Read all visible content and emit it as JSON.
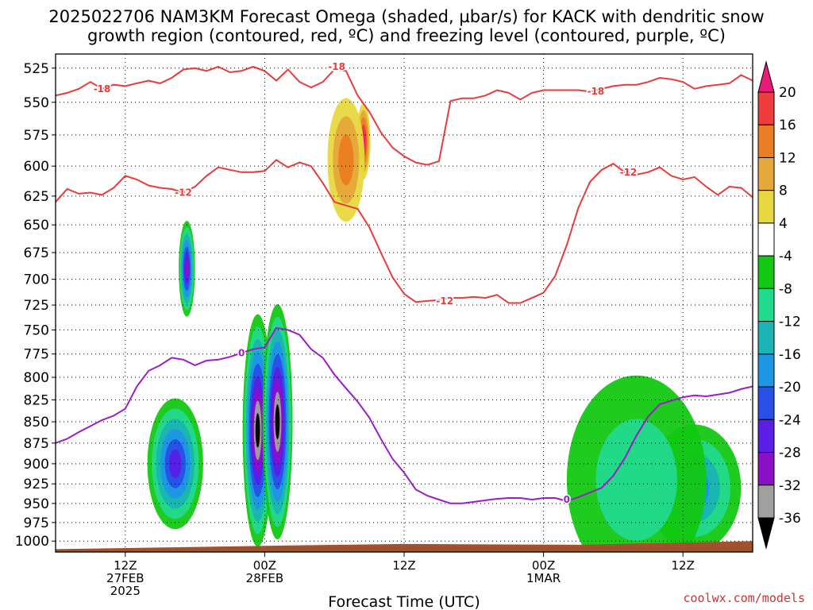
{
  "chart_data": {
    "type": "heatmap",
    "title_lines": [
      "2025022706 NAM3KM Forecast Omega (shaded, µbar/s) for KACK with dendritic snow",
      "growth region (contoured, red, ºC) and freezing level (contoured, purple, ºC)"
    ],
    "xlabel": "Forecast Time (UTC)",
    "x_ticks": [
      {
        "lines": [
          "12Z",
          "27FEB",
          "2025"
        ],
        "hour": 6
      },
      {
        "lines": [
          "00Z",
          "28FEB"
        ],
        "hour": 18
      },
      {
        "lines": [
          "12Z"
        ],
        "hour": 30
      },
      {
        "lines": [
          "00Z",
          "1MAR"
        ],
        "hour": 42
      },
      {
        "lines": [
          "12Z"
        ],
        "hour": 54
      }
    ],
    "xlim": [
      0,
      60
    ],
    "yaxis_scale": "pressure, log",
    "ylim": [
      1015,
      515
    ],
    "y_ticks": [
      525,
      550,
      575,
      600,
      625,
      650,
      675,
      700,
      725,
      750,
      775,
      800,
      825,
      850,
      875,
      900,
      925,
      950,
      975,
      1000
    ],
    "colorbar": {
      "labels": [
        "20",
        "16",
        "12",
        "8",
        "4",
        "-4",
        "-8",
        "-12",
        "-16",
        "-20",
        "-24",
        "-28",
        "-32",
        "-36"
      ],
      "colors": [
        "#e81a7a",
        "#f03c3c",
        "#eb7d22",
        "#e6a83a",
        "#e8d840",
        "#ffffff",
        "#12c812",
        "#23d98e",
        "#1ab4b4",
        "#1e96e6",
        "#2850e6",
        "#5a1ee6",
        "#8c0fc8",
        "#a0a0a0",
        "#000000"
      ]
    },
    "omega_features": [
      {
        "value": -36,
        "center": [
          17.4,
          860
        ],
        "span": [
          1.3,
          270
        ]
      },
      {
        "value": -36,
        "center": [
          19.1,
          850
        ],
        "span": [
          1.3,
          270
        ]
      },
      {
        "value": -28,
        "center": [
          11.3,
          690
        ],
        "span": [
          0.7,
          90
        ]
      },
      {
        "value": -24,
        "center": [
          10.3,
          900
        ],
        "span": [
          2.4,
          160
        ]
      },
      {
        "value": -16,
        "center": [
          55.0,
          930
        ],
        "span": [
          4.0,
          160
        ]
      },
      {
        "value": -8,
        "center": [
          50.0,
          920
        ],
        "span": [
          6.0,
          260
        ]
      },
      {
        "value": 20,
        "center": [
          26.5,
          580
        ],
        "span": [
          0.6,
          60
        ]
      },
      {
        "value": 12,
        "center": [
          25.0,
          595
        ],
        "span": [
          1.6,
          100
        ]
      }
    ],
    "series": [
      {
        "name": "-18",
        "color": "#e83c3c",
        "points": [
          [
            0,
            545
          ],
          [
            1,
            543
          ],
          [
            2,
            540
          ],
          [
            3,
            535
          ],
          [
            4,
            540
          ],
          [
            5,
            537
          ],
          [
            6,
            538
          ],
          [
            7,
            536
          ],
          [
            8,
            534
          ],
          [
            9,
            536
          ],
          [
            10,
            532
          ],
          [
            11,
            526
          ],
          [
            12,
            525
          ],
          [
            13,
            527
          ],
          [
            14,
            524
          ],
          [
            15,
            528
          ],
          [
            16,
            527
          ],
          [
            17,
            524
          ],
          [
            18,
            527
          ],
          [
            19,
            534
          ],
          [
            20,
            526
          ],
          [
            21,
            535
          ],
          [
            22,
            539
          ],
          [
            23,
            535
          ],
          [
            24,
            526
          ],
          [
            25,
            527
          ],
          [
            26,
            545
          ],
          [
            27,
            557
          ],
          [
            28,
            573
          ],
          [
            29,
            585
          ],
          [
            30,
            592
          ],
          [
            31,
            597
          ],
          [
            32,
            599
          ],
          [
            33,
            596
          ],
          [
            34,
            549
          ],
          [
            35,
            547
          ],
          [
            36,
            547
          ],
          [
            37,
            545
          ],
          [
            38,
            541
          ],
          [
            39,
            543
          ],
          [
            40,
            548
          ],
          [
            41,
            543
          ],
          [
            42,
            541
          ],
          [
            43,
            541
          ],
          [
            44,
            541
          ],
          [
            45,
            541
          ],
          [
            46,
            542
          ],
          [
            47,
            540
          ],
          [
            48,
            538
          ],
          [
            49,
            537
          ],
          [
            50,
            537
          ],
          [
            51,
            535
          ],
          [
            52,
            532
          ],
          [
            53,
            533
          ],
          [
            54,
            535
          ],
          [
            55,
            540
          ],
          [
            56,
            538
          ],
          [
            57,
            537
          ],
          [
            58,
            536
          ],
          [
            59,
            530
          ],
          [
            60,
            534
          ]
        ]
      },
      {
        "name": "-12",
        "color": "#e83c3c",
        "points": [
          [
            0,
            630
          ],
          [
            1,
            619
          ],
          [
            2,
            623
          ],
          [
            3,
            622
          ],
          [
            4,
            624
          ],
          [
            5,
            618
          ],
          [
            6,
            608
          ],
          [
            7,
            611
          ],
          [
            8,
            616
          ],
          [
            9,
            618
          ],
          [
            10,
            619
          ],
          [
            11,
            622
          ],
          [
            12,
            617
          ],
          [
            13,
            608
          ],
          [
            14,
            601
          ],
          [
            15,
            603
          ],
          [
            16,
            605
          ],
          [
            17,
            605
          ],
          [
            18,
            604
          ],
          [
            19,
            595
          ],
          [
            20,
            601
          ],
          [
            21,
            597
          ],
          [
            22,
            600
          ],
          [
            23,
            614
          ],
          [
            24,
            630
          ],
          [
            25,
            633
          ],
          [
            26,
            636
          ],
          [
            27,
            652
          ],
          [
            28,
            675
          ],
          [
            29,
            698
          ],
          [
            30,
            714
          ],
          [
            31,
            722
          ],
          [
            32,
            721
          ],
          [
            33,
            720
          ],
          [
            34,
            718
          ],
          [
            35,
            718
          ],
          [
            36,
            717
          ],
          [
            37,
            718
          ],
          [
            38,
            715
          ],
          [
            39,
            723
          ],
          [
            40,
            723
          ],
          [
            41,
            718
          ],
          [
            42,
            713
          ],
          [
            43,
            697
          ],
          [
            44,
            668
          ],
          [
            45,
            635
          ],
          [
            46,
            613
          ],
          [
            47,
            603
          ],
          [
            48,
            598
          ],
          [
            49,
            605
          ],
          [
            50,
            607
          ],
          [
            51,
            605
          ],
          [
            52,
            601
          ],
          [
            53,
            608
          ],
          [
            54,
            611
          ],
          [
            55,
            609
          ],
          [
            56,
            617
          ],
          [
            57,
            624
          ],
          [
            58,
            617
          ],
          [
            59,
            618
          ],
          [
            60,
            626
          ]
        ]
      },
      {
        "name": "0",
        "color": "#9a1ec8",
        "points": [
          [
            0,
            875
          ],
          [
            1,
            870
          ],
          [
            2,
            862
          ],
          [
            3,
            855
          ],
          [
            4,
            848
          ],
          [
            5,
            843
          ],
          [
            6,
            835
          ],
          [
            7,
            810
          ],
          [
            8,
            793
          ],
          [
            9,
            787
          ],
          [
            10,
            779
          ],
          [
            11,
            781
          ],
          [
            12,
            787
          ],
          [
            13,
            782
          ],
          [
            14,
            781
          ],
          [
            15,
            778
          ],
          [
            16,
            774
          ],
          [
            17,
            770
          ],
          [
            18,
            768
          ],
          [
            19,
            748
          ],
          [
            20,
            750
          ],
          [
            21,
            755
          ],
          [
            22,
            770
          ],
          [
            23,
            779
          ],
          [
            24,
            797
          ],
          [
            25,
            812
          ],
          [
            26,
            827
          ],
          [
            27,
            845
          ],
          [
            28,
            870
          ],
          [
            29,
            894
          ],
          [
            30,
            911
          ],
          [
            31,
            932
          ],
          [
            32,
            940
          ],
          [
            33,
            945
          ],
          [
            34,
            950
          ],
          [
            35,
            950
          ],
          [
            36,
            948
          ],
          [
            37,
            946
          ],
          [
            38,
            944
          ],
          [
            39,
            943
          ],
          [
            40,
            943
          ],
          [
            41,
            945
          ],
          [
            42,
            943
          ],
          [
            43,
            943
          ],
          [
            44,
            947
          ],
          [
            45,
            942
          ],
          [
            46,
            936
          ],
          [
            47,
            930
          ],
          [
            48,
            915
          ],
          [
            49,
            893
          ],
          [
            50,
            866
          ],
          [
            51,
            844
          ],
          [
            52,
            830
          ],
          [
            53,
            826
          ],
          [
            54,
            822
          ],
          [
            55,
            820
          ],
          [
            56,
            821
          ],
          [
            57,
            819
          ],
          [
            58,
            817
          ],
          [
            59,
            813
          ],
          [
            60,
            810
          ]
        ]
      }
    ],
    "contour_labels": [
      {
        "text": "-18",
        "x": 4,
        "y": 540
      },
      {
        "text": "-18",
        "x": 24.2,
        "y": 524
      },
      {
        "text": "-18",
        "x": 46.5,
        "y": 542
      },
      {
        "text": "-12",
        "x": 11,
        "y": 622
      },
      {
        "text": "-12",
        "x": 33.5,
        "y": 721
      },
      {
        "text": "-12",
        "x": 49.3,
        "y": 605
      },
      {
        "text": "0",
        "x": 16,
        "y": 774
      },
      {
        "text": "0",
        "x": 44,
        "y": 945
      }
    ],
    "ground_color": "#a0522d",
    "grid": true,
    "legend": "colorbar right"
  },
  "credit": "coolwx.com/models"
}
